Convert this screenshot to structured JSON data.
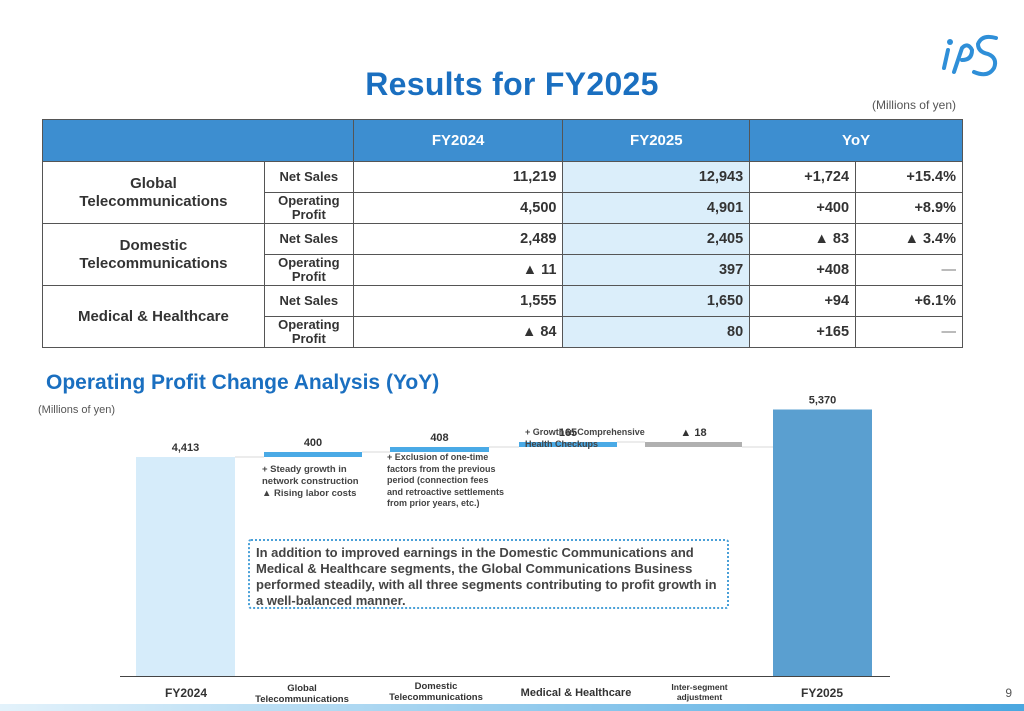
{
  "title": "Results for FY2025",
  "unit_top": "(Millions of yen)",
  "table": {
    "headers": [
      "FY2024",
      "FY2025",
      "YoY"
    ],
    "segments": [
      {
        "name_lines": [
          "Global",
          "Telecommunications"
        ],
        "rows": [
          {
            "metric_lines": [
              "Net Sales"
            ],
            "fy2024": "11,219",
            "fy2025": "12,943",
            "yoy_abs": "+1,724",
            "yoy_pct": "+15.4%"
          },
          {
            "metric_lines": [
              "Operating",
              "Profit"
            ],
            "fy2024": "4,500",
            "fy2025": "4,901",
            "yoy_abs": "+400",
            "yoy_pct": "+8.9%"
          }
        ]
      },
      {
        "name_lines": [
          "Domestic",
          "Telecommunications"
        ],
        "rows": [
          {
            "metric_lines": [
              "Net Sales"
            ],
            "fy2024": "2,489",
            "fy2025": "2,405",
            "yoy_abs": "▲ 83",
            "yoy_pct": "▲ 3.4%"
          },
          {
            "metric_lines": [
              "Operating",
              "Profit"
            ],
            "fy2024": "▲ 11",
            "fy2025": "397",
            "yoy_abs": "+408",
            "yoy_pct": "—"
          }
        ]
      },
      {
        "name_lines": [
          "Medical & Healthcare"
        ],
        "rows": [
          {
            "metric_lines": [
              "Net Sales"
            ],
            "fy2024": "1,555",
            "fy2025": "1,650",
            "yoy_abs": "+94",
            "yoy_pct": "+6.1%"
          },
          {
            "metric_lines": [
              "Operating",
              "Profit"
            ],
            "fy2024": "▲ 84",
            "fy2025": "80",
            "yoy_abs": "+165",
            "yoy_pct": "—"
          }
        ]
      }
    ]
  },
  "analysis_title": "Operating Profit Change Analysis (YoY)",
  "unit_chart": "(Millions of yen)",
  "chart_data": {
    "type": "bar",
    "subtype": "waterfall",
    "categories": [
      "FY2024",
      "Global Telecommunications",
      "Domestic Telecommunications",
      "Medical & Healthcare",
      "Inter-segment adjustment",
      "FY2025"
    ],
    "values": [
      4413,
      400,
      408,
      165,
      -18,
      5370
    ],
    "value_labels": [
      "4,413",
      "400",
      "408",
      "165",
      "▲ 18",
      "5,370"
    ],
    "bar_types": [
      "total",
      "delta",
      "delta",
      "delta",
      "delta",
      "total"
    ],
    "colors": {
      "fy2024": "#d6ecfa",
      "delta": "#4aaae6",
      "negative": "#b0b0b0",
      "fy2025": "#5a9fd0"
    }
  },
  "notes": {
    "global": [
      "+ Steady growth in",
      "network construction",
      "▲ Rising labor costs"
    ],
    "domestic": [
      "+ Exclusion of one-time",
      "factors from the previous",
      "period (connection fees",
      "and retroactive settlements",
      "from prior years, etc.)"
    ],
    "medical": [
      "+ Growth in Comprehensive",
      "Health Checkups"
    ]
  },
  "callout": "In addition to improved earnings in the Domestic Communications and Medical & Healthcare segments, the Global Communications Business performed steadily, with all three segments contributing to profit growth in a well-balanced manner.",
  "x_labels": {
    "fy2024": [
      "FY2024"
    ],
    "global": [
      "Global",
      "Telecommunications"
    ],
    "domestic": [
      "Domestic",
      "Telecommunications"
    ],
    "medical": [
      "Medical & Healthcare"
    ],
    "inter": [
      "Inter-segment",
      "adjustment"
    ],
    "fy2025": [
      "FY2025"
    ]
  },
  "page_number": "9"
}
